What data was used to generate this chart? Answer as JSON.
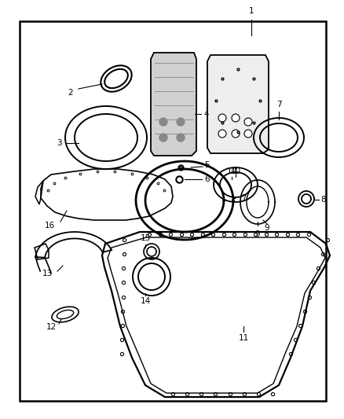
{
  "background_color": "#ffffff",
  "border_color": "#000000",
  "line_color": "#000000",
  "label_color": "#000000",
  "fig_width": 4.38,
  "fig_height": 5.33,
  "dpi": 100
}
